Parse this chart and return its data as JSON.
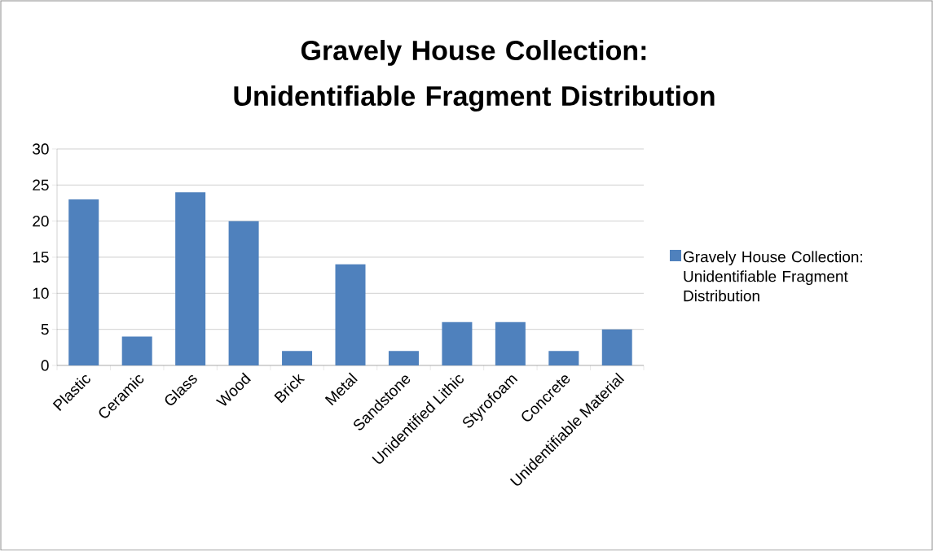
{
  "chart_data": {
    "type": "bar",
    "title": "Gravely House Collection: Unidentifiable Fragment Distribution",
    "categories": [
      "Plastic",
      "Ceramic",
      "Glass",
      "Wood",
      "Brick",
      "Metal",
      "Sandstone",
      "Unidentified Lithic",
      "Styrofoam",
      "Concrete",
      "Unidentifiable Material"
    ],
    "series": [
      {
        "name": "Gravely House Collection: Unidentifiable Fragment Distribution",
        "color": "#4f81bd",
        "values": [
          23,
          4,
          24,
          20,
          2,
          14,
          2,
          6,
          6,
          2,
          5
        ]
      }
    ],
    "ylim": [
      0,
      30
    ],
    "yticks": [
      0,
      5,
      10,
      15,
      20,
      25,
      30
    ],
    "grid": "y",
    "legend": "right"
  }
}
